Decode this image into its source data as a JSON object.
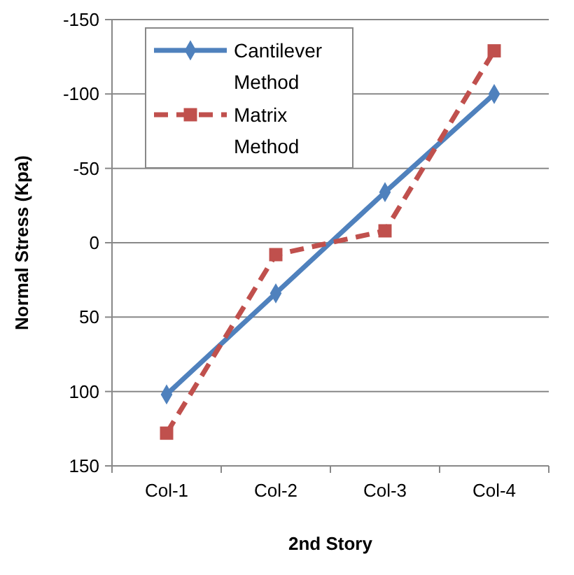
{
  "chart_data": {
    "type": "line",
    "xlabel": "2nd Story",
    "ylabel": "Normal Stress (Kpa)",
    "categories": [
      "Col-1",
      "Col-2",
      "Col-3",
      "Col-4"
    ],
    "series": [
      {
        "name": "Cantilever Method",
        "color": "#4f81bd",
        "values": [
          102,
          34,
          -34,
          -100
        ],
        "marker": "diamond",
        "line_style": "solid"
      },
      {
        "name": "Matrix Method",
        "color": "#c0504d",
        "values": [
          128,
          8,
          -8,
          -129
        ],
        "marker": "square",
        "line_style": "dashed"
      }
    ],
    "ylim": [
      150,
      -150
    ],
    "yticks": [
      -150,
      -100,
      -50,
      0,
      50,
      100,
      150
    ],
    "grid": "y",
    "legend": "top left"
  }
}
